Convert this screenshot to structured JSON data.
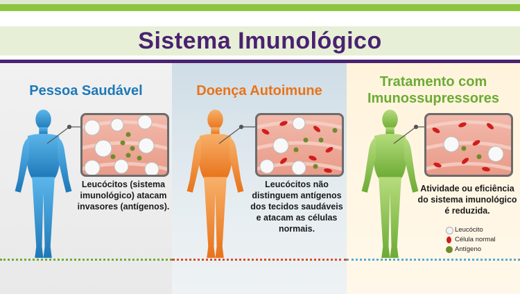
{
  "title": "Sistema Imunológico",
  "panels": [
    {
      "heading": "Pessoa Saudável",
      "caption_lines": [
        "Leucócitos (sistema",
        "imunológico) atacam",
        "invasores (antígenos)."
      ]
    },
    {
      "heading": "Doença Autoimune",
      "caption_lines": [
        "Leucócitos não",
        "distinguem antígenos",
        "dos tecidos saudáveis",
        "e atacam as células",
        "normais."
      ]
    },
    {
      "heading_lines": [
        "Tratamento com",
        "Imunossupressores"
      ],
      "caption_lines": [
        "Atividade ou eficiência",
        "do sistema imunológico",
        "é reduzida."
      ]
    }
  ],
  "legend": {
    "leucocito": "Leucócito",
    "celula_normal": "Célula normal",
    "antigeno": "Antígeno"
  },
  "colors": {
    "title": "#4a2270",
    "blue": "#1e78b8",
    "orange": "#e8731a",
    "green": "#6cab34"
  }
}
